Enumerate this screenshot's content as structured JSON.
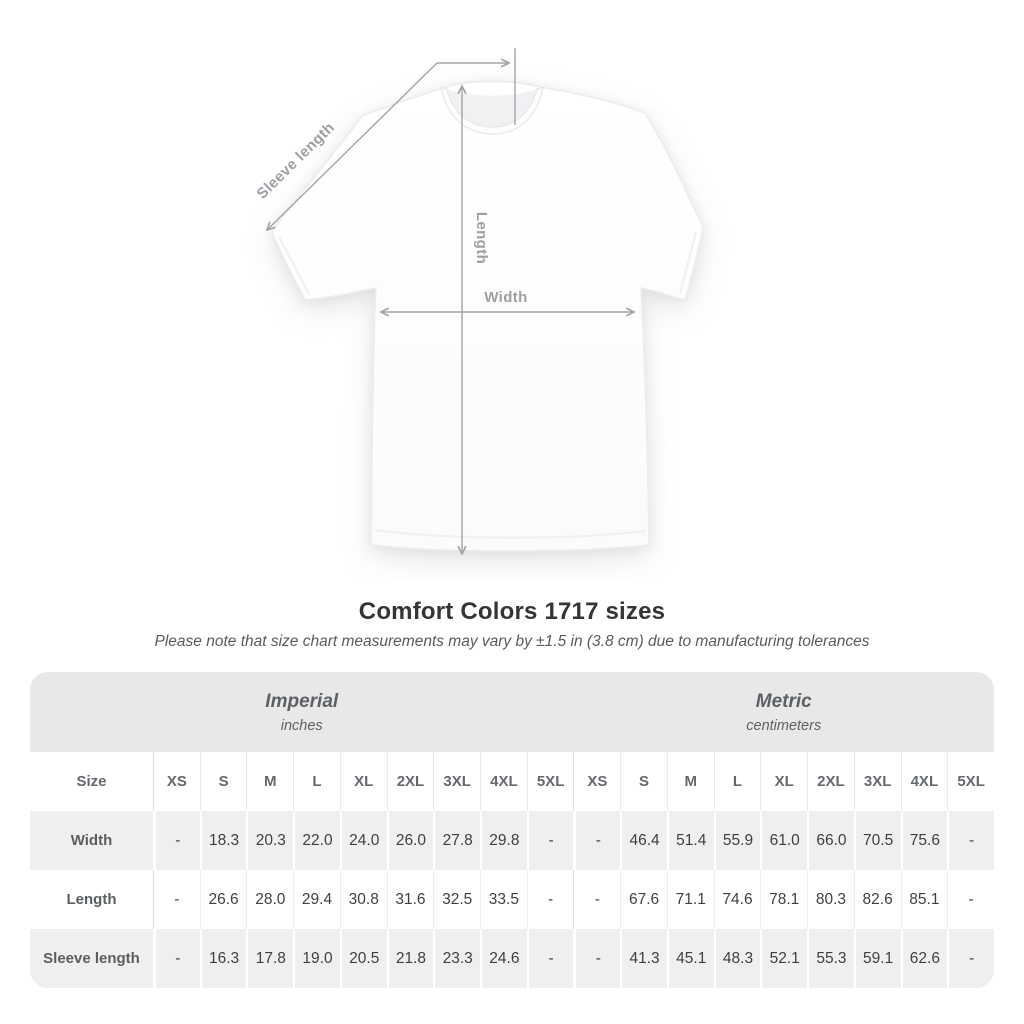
{
  "title": "Comfort Colors 1717 sizes",
  "subtitle": "Please note that size chart measurements may vary by ±1.5 in (3.8 cm) due to manufacturing tolerances",
  "diagram": {
    "sleeve_length_label": "Sleeve length",
    "length_label": "Length",
    "width_label": "Width",
    "annotation_color": "#9ba0a4"
  },
  "colors": {
    "unit_band_bg": "#e8e8e8",
    "stripe_row_bg": "#efefef",
    "header_text": "#65696d",
    "value_text": "#3d4043",
    "title_text": "#333537",
    "subtitle_text": "#585b5e"
  },
  "chart_data": {
    "type": "table",
    "title": "Comfort Colors 1717 sizes",
    "unit_groups": [
      {
        "label": "Imperial",
        "sublabel": "inches"
      },
      {
        "label": "Metric",
        "sublabel": "centimeters"
      }
    ],
    "size_column_header": "Size",
    "sizes": [
      "XS",
      "S",
      "M",
      "L",
      "XL",
      "2XL",
      "3XL",
      "4XL",
      "5XL"
    ],
    "rows": [
      {
        "label": "Width",
        "imperial": [
          "-",
          "18.3",
          "20.3",
          "22.0",
          "24.0",
          "26.0",
          "27.8",
          "29.8",
          "-"
        ],
        "metric": [
          "-",
          "46.4",
          "51.4",
          "55.9",
          "61.0",
          "66.0",
          "70.5",
          "75.6",
          "-"
        ]
      },
      {
        "label": "Length",
        "imperial": [
          "-",
          "26.6",
          "28.0",
          "29.4",
          "30.8",
          "31.6",
          "32.5",
          "33.5",
          "-"
        ],
        "metric": [
          "-",
          "67.6",
          "71.1",
          "74.6",
          "78.1",
          "80.3",
          "82.6",
          "85.1",
          "-"
        ]
      },
      {
        "label": "Sleeve length",
        "imperial": [
          "-",
          "16.3",
          "17.8",
          "19.0",
          "20.5",
          "21.8",
          "23.3",
          "24.6",
          "-"
        ],
        "metric": [
          "-",
          "41.3",
          "45.1",
          "48.3",
          "52.1",
          "55.3",
          "59.1",
          "62.6",
          "-"
        ]
      }
    ]
  }
}
